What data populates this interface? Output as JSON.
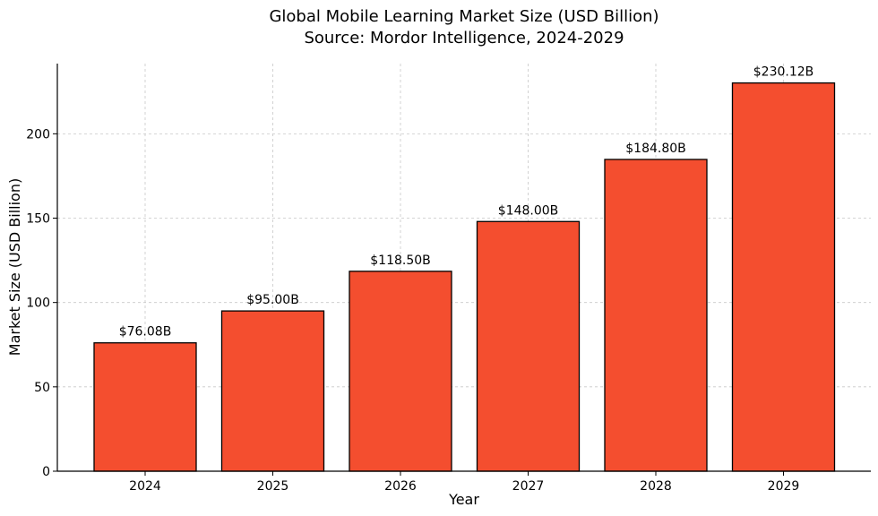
{
  "chart_data": {
    "type": "bar",
    "title": "Global Mobile Learning Market Size (USD Billion)",
    "subtitle": "Source: Mordor Intelligence, 2024-2029",
    "xlabel": "Year",
    "ylabel": "Market Size (USD Billion)",
    "categories": [
      "2024",
      "2025",
      "2026",
      "2027",
      "2028",
      "2029"
    ],
    "values": [
      76.08,
      95.0,
      118.5,
      148.0,
      184.8,
      230.12
    ],
    "data_labels": [
      "$76.08B",
      "$95.00B",
      "$118.50B",
      "$148.00B",
      "$184.80B",
      "$230.12B"
    ],
    "ylim": [
      0,
      241.6
    ],
    "yticks": [
      0,
      50,
      100,
      150,
      200
    ],
    "grid": true,
    "bar_color": "#f44e2f",
    "bar_edge_color": "#000000",
    "grid_color": "#c8c8c8"
  }
}
